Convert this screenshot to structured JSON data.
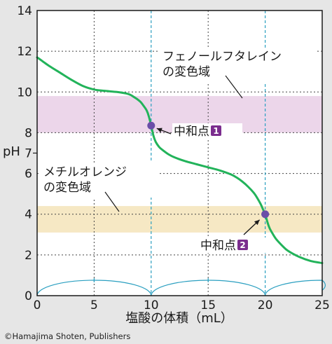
{
  "chart_data": {
    "type": "line",
    "xlabel": "塩酸の体積（mL）",
    "ylabel": "pH",
    "xlim": [
      0,
      25
    ],
    "ylim": [
      0,
      14
    ],
    "xticks": [
      "0",
      "5",
      "10",
      "15",
      "20",
      "25"
    ],
    "yticks": [
      "0",
      "2",
      "4",
      "6",
      "8",
      "10",
      "12",
      "14"
    ],
    "ylabel_extra_tick": "7",
    "grid": true,
    "series": [
      {
        "color": "#22b35a",
        "x": [
          0,
          0.5,
          1,
          2,
          3,
          4,
          5,
          6,
          7,
          8,
          8.5,
          9,
          9.3,
          9.6,
          9.8,
          10,
          10.2,
          10.4,
          10.7,
          11,
          11.5,
          12,
          13,
          14,
          15,
          16,
          17,
          17.5,
          18,
          18.5,
          19,
          19.3,
          19.6,
          19.8,
          20,
          20.2,
          20.4,
          20.7,
          21,
          21.5,
          22,
          23,
          24,
          25
        ],
        "y": [
          11.7,
          11.5,
          11.3,
          10.95,
          10.6,
          10.3,
          10.12,
          10.05,
          10.0,
          9.9,
          9.75,
          9.55,
          9.35,
          9.1,
          8.8,
          8.35,
          7.85,
          7.55,
          7.3,
          7.15,
          6.95,
          6.8,
          6.6,
          6.45,
          6.3,
          6.15,
          5.95,
          5.8,
          5.6,
          5.35,
          5.05,
          4.8,
          4.5,
          4.25,
          4.0,
          3.6,
          3.3,
          3.0,
          2.75,
          2.45,
          2.2,
          1.9,
          1.7,
          1.6
        ]
      }
    ],
    "equivalence_points": [
      {
        "x": 10,
        "y": 8.35,
        "label": "中和点",
        "badge": "1"
      },
      {
        "x": 20,
        "y": 4.0,
        "label": "中和点",
        "badge": "2"
      }
    ],
    "equivalence_lines_x": [
      10,
      20
    ],
    "indicator_bands": [
      {
        "name_line1": "フェノールフタレイン",
        "name_line2": "の変色域",
        "y_range": [
          8.0,
          9.8
        ],
        "color": "#ecd6ea"
      },
      {
        "name_line1": "メチルオレンジ",
        "name_line2": "の変色域",
        "y_range": [
          3.1,
          4.4
        ],
        "color": "#f6e8c4"
      }
    ],
    "colors": {
      "curve": "#22b35a",
      "marker": "#6a4ea8",
      "vline": "#2a9fc0",
      "badge": "#7b2d8e",
      "arc": "#2a9fc0"
    }
  },
  "copyright": "©Hamajima Shoten, Publishers"
}
